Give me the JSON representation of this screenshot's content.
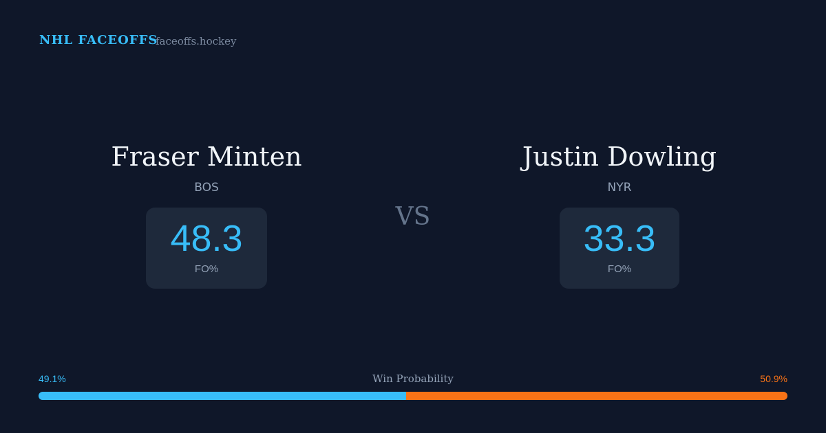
{
  "header": {
    "title": "NHL FACEOFFS",
    "site": "faceoffs.hockey"
  },
  "players": [
    {
      "name": "Fraser Minten",
      "team": "BOS",
      "stat": 48.3,
      "stat_label": "FO%"
    },
    {
      "name": "Justin Dowling",
      "team": "NYR",
      "stat": 33.3,
      "stat_label": "FO%"
    }
  ],
  "versus": "VS",
  "win_probability": {
    "label": "Win Probability",
    "values": [
      49.1,
      50.9
    ],
    "value_labels": [
      "49.1%",
      "50.9%"
    ],
    "colors": [
      "#38bdf8",
      "#f97316"
    ]
  }
}
